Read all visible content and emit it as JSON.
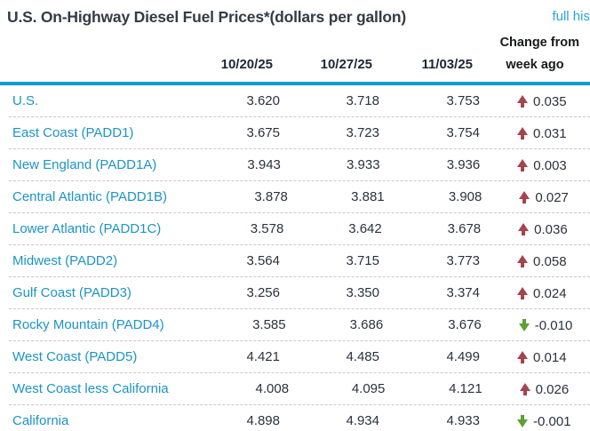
{
  "header": {
    "title": "U.S. On-Highway Diesel Fuel Prices*(dollars per gallon)",
    "link_label": "full his",
    "change_from_line1": "Change from",
    "change_from_line2": "week ago",
    "date_columns": [
      "10/20/25",
      "10/27/25",
      "11/03/25"
    ]
  },
  "table": {
    "rows": [
      {
        "region": "U.S.",
        "v1": "3.620",
        "v2": "3.718",
        "v3": "3.753",
        "direction": "up",
        "change": "0.035"
      },
      {
        "region": "East Coast (PADD1)",
        "v1": "3.675",
        "v2": "3.723",
        "v3": "3.754",
        "direction": "up",
        "change": "0.031"
      },
      {
        "region": "New England (PADD1A)",
        "v1": "3.943",
        "v2": "3.933",
        "v3": "3.936",
        "direction": "up",
        "change": "0.003"
      },
      {
        "region": "Central Atlantic (PADD1B)",
        "v1": "3.878",
        "v2": "3.881",
        "v3": "3.908",
        "direction": "up",
        "change": "0.027"
      },
      {
        "region": "Lower Atlantic (PADD1C)",
        "v1": "3.578",
        "v2": "3.642",
        "v3": "3.678",
        "direction": "up",
        "change": "0.036"
      },
      {
        "region": "Midwest (PADD2)",
        "v1": "3.564",
        "v2": "3.715",
        "v3": "3.773",
        "direction": "up",
        "change": "0.058"
      },
      {
        "region": "Gulf Coast (PADD3)",
        "v1": "3.256",
        "v2": "3.350",
        "v3": "3.374",
        "direction": "up",
        "change": "0.024"
      },
      {
        "region": "Rocky Mountain (PADD4)",
        "v1": "3.585",
        "v2": "3.686",
        "v3": "3.676",
        "direction": "down",
        "change": "-0.010"
      },
      {
        "region": "West Coast (PADD5)",
        "v1": "4.421",
        "v2": "4.485",
        "v3": "4.499",
        "direction": "up",
        "change": "0.014"
      },
      {
        "region": "West Coast less California",
        "v1": "4.008",
        "v2": "4.095",
        "v3": "4.121",
        "direction": "up",
        "change": "0.026"
      },
      {
        "region": "California",
        "v1": "4.898",
        "v2": "4.934",
        "v3": "4.933",
        "direction": "down",
        "change": "-0.001"
      }
    ]
  },
  "colors": {
    "accent_teal_rule": "#0e9dd3",
    "region_text": "#1b94c8",
    "link_blue": "#2ba4dc",
    "up_arrow_red": "#a7424f",
    "down_arrow_green": "#5f9e33",
    "value_text": "#29333e",
    "title_text": "#323c47"
  }
}
